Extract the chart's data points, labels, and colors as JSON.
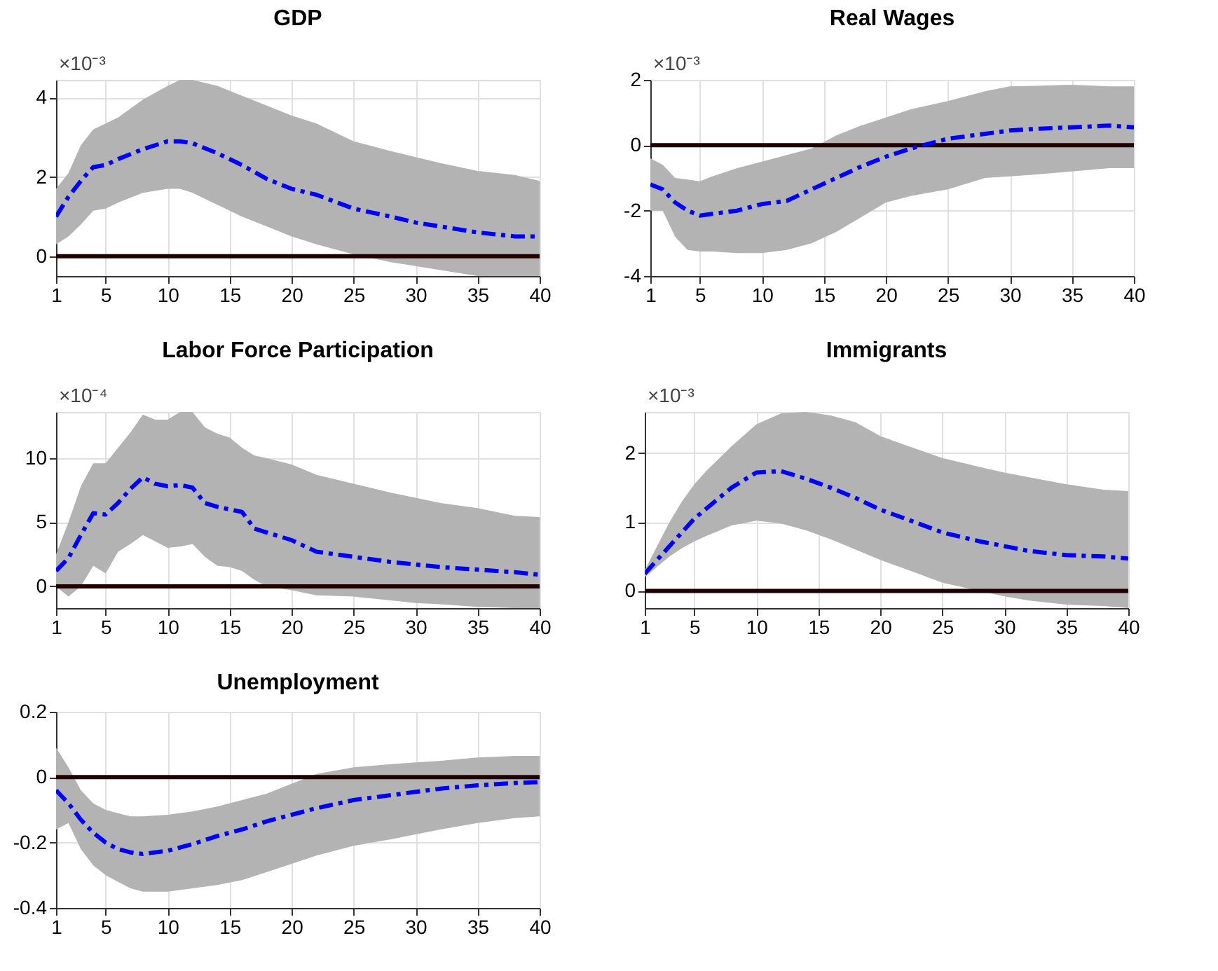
{
  "chart_data": [
    {
      "type": "line",
      "title": "GDP",
      "annotations": [
        "×10⁻³"
      ],
      "x": [
        1,
        2,
        3,
        4,
        5,
        6,
        8,
        10,
        11,
        12,
        14,
        16,
        18,
        20,
        22,
        25,
        28,
        30,
        32,
        35,
        38,
        40
      ],
      "xlim": [
        1,
        40
      ],
      "xticks": [
        1,
        5,
        10,
        15,
        20,
        25,
        30,
        35,
        40
      ],
      "ylim": [
        -0.5,
        4.45
      ],
      "yticks": [
        0,
        2,
        4
      ],
      "grid": true,
      "line_style": "dashed",
      "marker": "none",
      "series": [
        {
          "color": "#0000ff",
          "values": [
            1.0,
            1.5,
            1.9,
            2.25,
            2.3,
            2.45,
            2.7,
            2.9,
            2.9,
            2.85,
            2.6,
            2.3,
            1.95,
            1.7,
            1.55,
            1.2,
            1.0,
            0.85,
            0.75,
            0.6,
            0.5,
            0.5
          ],
          "upper": [
            1.7,
            2.1,
            2.8,
            3.2,
            3.35,
            3.5,
            3.95,
            4.3,
            4.45,
            4.45,
            4.3,
            4.05,
            3.8,
            3.55,
            3.35,
            2.9,
            2.65,
            2.5,
            2.35,
            2.15,
            2.05,
            1.9
          ],
          "lower": [
            0.3,
            0.5,
            0.8,
            1.15,
            1.2,
            1.35,
            1.6,
            1.7,
            1.7,
            1.6,
            1.3,
            1.0,
            0.75,
            0.5,
            0.3,
            0.05,
            -0.15,
            -0.25,
            -0.35,
            -0.5,
            -0.5,
            -0.5
          ]
        }
      ],
      "ref_lines": [
        {
          "axis": "y",
          "value": 0,
          "color": "#200000"
        }
      ]
    },
    {
      "type": "line",
      "title": "Real Wages",
      "annotations": [
        "×10⁻³"
      ],
      "x": [
        1,
        2,
        3,
        4,
        5,
        6,
        8,
        10,
        12,
        14,
        16,
        18,
        20,
        22,
        25,
        28,
        30,
        32,
        35,
        38,
        40
      ],
      "xlim": [
        1,
        40
      ],
      "xticks": [
        1,
        5,
        10,
        15,
        20,
        25,
        30,
        35,
        40
      ],
      "ylim": [
        -4,
        2
      ],
      "yticks": [
        -4,
        -2,
        0,
        2
      ],
      "grid": true,
      "line_style": "dashed",
      "marker": "none",
      "series": [
        {
          "color": "#0000ff",
          "values": [
            -1.2,
            -1.35,
            -1.75,
            -2.0,
            -2.15,
            -2.1,
            -2.0,
            -1.8,
            -1.7,
            -1.35,
            -1.0,
            -0.65,
            -0.35,
            -0.1,
            0.2,
            0.35,
            0.45,
            0.5,
            0.55,
            0.6,
            0.55
          ],
          "upper": [
            -0.4,
            -0.6,
            -1.0,
            -1.05,
            -1.1,
            -0.95,
            -0.7,
            -0.5,
            -0.3,
            -0.1,
            0.3,
            0.6,
            0.85,
            1.1,
            1.35,
            1.65,
            1.8,
            1.82,
            1.85,
            1.8,
            1.8
          ],
          "lower": [
            -2.0,
            -2.0,
            -2.8,
            -3.2,
            -3.25,
            -3.25,
            -3.3,
            -3.3,
            -3.2,
            -3.0,
            -2.65,
            -2.2,
            -1.75,
            -1.55,
            -1.35,
            -1.0,
            -0.95,
            -0.9,
            -0.8,
            -0.7,
            -0.7
          ]
        }
      ],
      "ref_lines": [
        {
          "axis": "y",
          "value": 0,
          "color": "#200000"
        }
      ]
    },
    {
      "type": "line",
      "title": "Labor Force Participation",
      "annotations": [
        "×10⁻⁴"
      ],
      "x": [
        1,
        2,
        3,
        4,
        5,
        6,
        7,
        8,
        9,
        10,
        11,
        12,
        13,
        14,
        15,
        16,
        17,
        18,
        20,
        22,
        25,
        28,
        30,
        32,
        35,
        38,
        40
      ],
      "xlim": [
        1,
        40
      ],
      "xticks": [
        1,
        5,
        10,
        15,
        20,
        25,
        30,
        35,
        40
      ],
      "ylim": [
        -1.7,
        13.6
      ],
      "yticks": [
        0,
        5,
        10
      ],
      "grid": true,
      "line_style": "dashed",
      "marker": "none",
      "series": [
        {
          "color": "#0000ff",
          "values": [
            1.2,
            2.2,
            4.0,
            5.7,
            5.6,
            6.5,
            7.6,
            8.5,
            8.0,
            7.8,
            7.9,
            7.7,
            6.5,
            6.2,
            6.0,
            5.8,
            4.5,
            4.2,
            3.6,
            2.7,
            2.3,
            1.9,
            1.7,
            1.5,
            1.3,
            1.1,
            0.9
          ],
          "upper": [
            2.5,
            5.0,
            7.8,
            9.6,
            9.6,
            10.8,
            12.0,
            13.4,
            13.0,
            13.0,
            13.6,
            13.6,
            12.4,
            11.9,
            11.6,
            10.8,
            10.2,
            10.0,
            9.5,
            8.7,
            8.0,
            7.3,
            6.9,
            6.5,
            6.1,
            5.5,
            5.4
          ],
          "lower": [
            0.0,
            -0.8,
            0.0,
            1.6,
            1.0,
            2.7,
            3.3,
            4.0,
            3.5,
            3.0,
            3.1,
            3.3,
            2.3,
            1.6,
            1.5,
            1.2,
            0.5,
            0.0,
            -0.3,
            -0.7,
            -0.8,
            -1.1,
            -1.3,
            -1.4,
            -1.6,
            -1.7,
            -1.7
          ]
        }
      ],
      "ref_lines": [
        {
          "axis": "y",
          "value": 0,
          "color": "#200000"
        }
      ]
    },
    {
      "type": "line",
      "title": "Immigrants",
      "annotations": [
        "×10⁻³"
      ],
      "x": [
        1,
        2,
        3,
        4,
        5,
        6,
        8,
        10,
        12,
        14,
        16,
        18,
        20,
        22,
        25,
        28,
        30,
        32,
        35,
        38,
        40
      ],
      "xlim": [
        1,
        40
      ],
      "xticks": [
        1,
        5,
        10,
        15,
        20,
        25,
        30,
        35,
        40
      ],
      "ylim": [
        -0.25,
        2.6
      ],
      "yticks": [
        0,
        1,
        2
      ],
      "grid": true,
      "line_style": "dashed",
      "marker": "none",
      "series": [
        {
          "color": "#0000ff",
          "values": [
            0.25,
            0.45,
            0.65,
            0.85,
            1.05,
            1.2,
            1.5,
            1.72,
            1.74,
            1.63,
            1.5,
            1.35,
            1.18,
            1.05,
            0.85,
            0.72,
            0.65,
            0.58,
            0.52,
            0.5,
            0.47
          ],
          "upper": [
            0.3,
            0.65,
            1.0,
            1.3,
            1.55,
            1.75,
            2.1,
            2.42,
            2.58,
            2.6,
            2.55,
            2.45,
            2.25,
            2.12,
            1.93,
            1.8,
            1.72,
            1.65,
            1.55,
            1.47,
            1.45
          ],
          "lower": [
            0.2,
            0.35,
            0.5,
            0.62,
            0.72,
            0.8,
            0.95,
            1.02,
            0.98,
            0.88,
            0.75,
            0.6,
            0.45,
            0.32,
            0.12,
            0.0,
            -0.08,
            -0.14,
            -0.2,
            -0.22,
            -0.25
          ]
        }
      ],
      "ref_lines": [
        {
          "axis": "y",
          "value": 0,
          "color": "#200000"
        }
      ]
    },
    {
      "type": "line",
      "title": "Unemployment",
      "x": [
        1,
        2,
        3,
        4,
        5,
        6,
        7,
        8,
        10,
        12,
        14,
        16,
        18,
        20,
        22,
        25,
        28,
        30,
        32,
        35,
        38,
        40
      ],
      "xlim": [
        1,
        40
      ],
      "xticks": [
        1,
        5,
        10,
        15,
        20,
        25,
        30,
        35,
        40
      ],
      "ylim": [
        -0.4,
        0.2
      ],
      "yticks": [
        -0.4,
        -0.2,
        0,
        0.2
      ],
      "grid": true,
      "line_style": "dashed",
      "marker": "none",
      "series": [
        {
          "color": "#0000ff",
          "values": [
            -0.04,
            -0.08,
            -0.13,
            -0.17,
            -0.2,
            -0.22,
            -0.23,
            -0.235,
            -0.225,
            -0.205,
            -0.18,
            -0.16,
            -0.135,
            -0.115,
            -0.095,
            -0.07,
            -0.055,
            -0.045,
            -0.035,
            -0.025,
            -0.018,
            -0.015
          ],
          "upper": [
            0.09,
            0.03,
            -0.04,
            -0.08,
            -0.1,
            -0.11,
            -0.12,
            -0.12,
            -0.115,
            -0.105,
            -0.09,
            -0.07,
            -0.05,
            -0.02,
            0.01,
            0.03,
            0.04,
            0.045,
            0.05,
            0.06,
            0.065,
            0.065
          ],
          "lower": [
            -0.16,
            -0.14,
            -0.22,
            -0.27,
            -0.3,
            -0.32,
            -0.34,
            -0.35,
            -0.35,
            -0.34,
            -0.33,
            -0.315,
            -0.29,
            -0.265,
            -0.24,
            -0.21,
            -0.19,
            -0.175,
            -0.16,
            -0.14,
            -0.125,
            -0.12
          ]
        }
      ],
      "ref_lines": [
        {
          "axis": "y",
          "value": 0,
          "color": "#200000"
        }
      ]
    }
  ]
}
